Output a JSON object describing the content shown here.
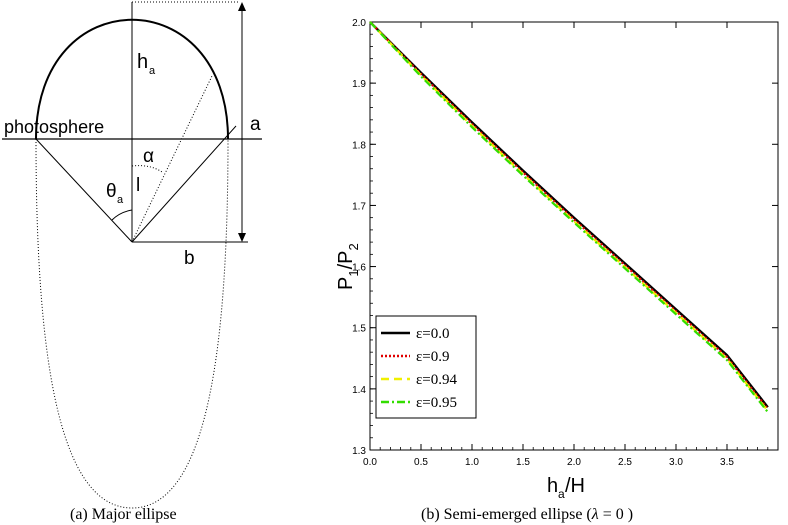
{
  "panel_a": {
    "labels": {
      "h_main": "h",
      "h_sub": "a",
      "photosphere": "photosphere",
      "a": "a",
      "alpha": "α",
      "l": "l",
      "theta_main": "θ",
      "theta_sub": "a",
      "b": "b"
    },
    "caption": "(a) Major ellipse"
  },
  "panel_b": {
    "caption_pre": "(b) Semi-emerged ellipse (",
    "caption_lambda": "λ",
    "caption_post": " = 0 )"
  },
  "chart_data": {
    "type": "line",
    "xlabel_main": "h",
    "xlabel_sub": "a",
    "xlabel_rest": "/H",
    "ylabel_main": "P",
    "ylabel_sub1": "1",
    "ylabel_mid": "/P",
    "ylabel_sub2": "2",
    "xlim": [
      0.0,
      4.0
    ],
    "ylim": [
      1.3,
      2.0
    ],
    "xticks": [
      "0.0",
      "0.5",
      "1.0",
      "1.5",
      "2.0",
      "2.5",
      "3.0",
      "3.5"
    ],
    "yticks": [
      "1.3",
      "1.4",
      "1.5",
      "1.6",
      "1.7",
      "1.8",
      "1.9",
      "2.0"
    ],
    "x": [
      0.0,
      0.5,
      1.0,
      1.5,
      2.0,
      2.5,
      3.0,
      3.5,
      3.9
    ],
    "series": [
      {
        "name": "ε=0.0",
        "color": "#000000",
        "dash": "",
        "values": [
          2.0,
          1.917,
          1.836,
          1.757,
          1.68,
          1.605,
          1.53,
          1.455,
          1.37
        ]
      },
      {
        "name": "ε=0.9",
        "color": "#e00000",
        "dash": "2,2",
        "values": [
          2.0,
          1.915,
          1.833,
          1.754,
          1.677,
          1.602,
          1.527,
          1.452,
          1.367
        ]
      },
      {
        "name": "ε=0.94",
        "color": "#f0f000",
        "dash": "8,5",
        "values": [
          2.0,
          1.913,
          1.83,
          1.751,
          1.674,
          1.599,
          1.524,
          1.449,
          1.364
        ]
      },
      {
        "name": "ε=0.95",
        "color": "#33dd00",
        "dash": "8,3,2,3",
        "values": [
          2.0,
          1.911,
          1.828,
          1.749,
          1.672,
          1.597,
          1.522,
          1.447,
          1.362
        ]
      }
    ],
    "legend_position": "bottom-left"
  }
}
